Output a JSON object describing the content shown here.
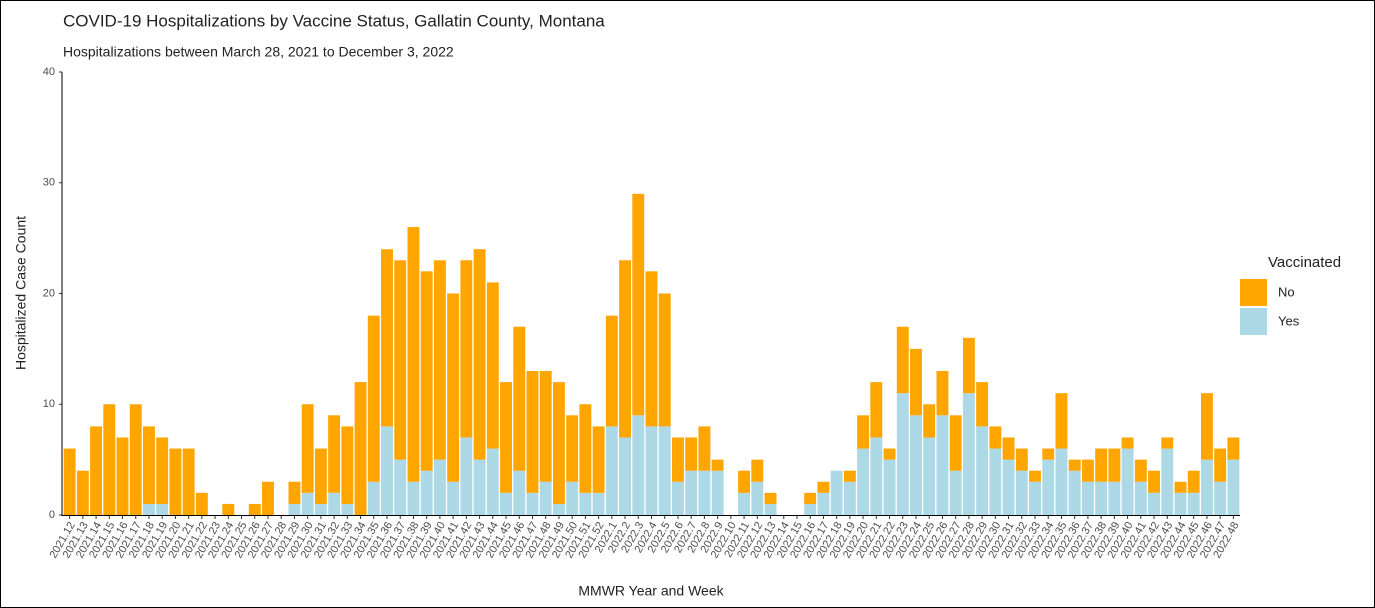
{
  "chart_data": {
    "type": "stacked_bar",
    "title": "COVID-19 Hospitalizations by Vaccine Status, Gallatin County, Montana",
    "subtitle": "Hospitalizations between March 28, 2021 to December 3, 2022",
    "x_label": "MMWR Year and Week",
    "y_label": "Hospitalized Case Count",
    "legend_title": "Vaccinated",
    "legend_position": "right",
    "categories": [
      "2021.12",
      "2021.13",
      "2021.14",
      "2021.15",
      "2021.16",
      "2021.17",
      "2021.18",
      "2021.19",
      "2021.20",
      "2021.21",
      "2021.22",
      "2021.23",
      "2021.24",
      "2021.25",
      "2021.26",
      "2021.27",
      "2021.28",
      "2021.29",
      "2021.30",
      "2021.31",
      "2021.32",
      "2021.33",
      "2021.34",
      "2021.35",
      "2021.36",
      "2021.37",
      "2021.38",
      "2021.39",
      "2021.40",
      "2021.41",
      "2021.42",
      "2021.43",
      "2021.44",
      "2021.45",
      "2021.46",
      "2021.47",
      "2021.48",
      "2021.49",
      "2021.50",
      "2021.51",
      "2021.52",
      "2022.1",
      "2022.2",
      "2022.3",
      "2022.4",
      "2022.5",
      "2022.6",
      "2022.7",
      "2022.8",
      "2022.9",
      "2022.10",
      "2022.11",
      "2022.12",
      "2022.13",
      "2022.14",
      "2022.15",
      "2022.16",
      "2022.17",
      "2022.18",
      "2022.19",
      "2022.20",
      "2022.21",
      "2022.22",
      "2022.23",
      "2022.24",
      "2022.25",
      "2022.26",
      "2022.27",
      "2022.28",
      "2022.29",
      "2022.30",
      "2022.31",
      "2022.32",
      "2022.33",
      "2022.34",
      "2022.35",
      "2022.36",
      "2022.37",
      "2022.38",
      "2022.39",
      "2022.40",
      "2022.41",
      "2022.42",
      "2022.43",
      "2022.44",
      "2022.45",
      "2022.46",
      "2022.47",
      "2022.48"
    ],
    "series": [
      {
        "name": "No",
        "color": "#ffa500",
        "values": [
          6,
          4,
          8,
          10,
          7,
          10,
          7,
          6,
          6,
          6,
          2,
          0,
          1,
          0,
          1,
          3,
          0,
          2,
          8,
          5,
          7,
          7,
          12,
          15,
          16,
          18,
          23,
          18,
          18,
          17,
          16,
          19,
          15,
          10,
          13,
          11,
          10,
          11,
          6,
          8,
          6,
          10,
          16,
          20,
          14,
          12,
          4,
          3,
          4,
          1,
          0,
          2,
          2,
          1,
          0,
          0,
          1,
          1,
          0,
          1,
          3,
          5,
          1,
          6,
          6,
          3,
          4,
          5,
          5,
          4,
          2,
          2,
          2,
          1,
          1,
          5,
          1,
          2,
          3,
          3,
          1,
          2,
          2,
          1,
          1,
          2,
          6,
          3,
          2
        ]
      },
      {
        "name": "Yes",
        "color": "#add8e6",
        "values": [
          0,
          0,
          0,
          0,
          0,
          0,
          1,
          1,
          0,
          0,
          0,
          0,
          0,
          0,
          0,
          0,
          0,
          1,
          2,
          1,
          2,
          1,
          0,
          3,
          8,
          5,
          3,
          4,
          5,
          3,
          7,
          5,
          6,
          2,
          4,
          2,
          3,
          1,
          3,
          2,
          2,
          8,
          7,
          9,
          8,
          8,
          3,
          4,
          4,
          4,
          0,
          2,
          3,
          1,
          0,
          0,
          1,
          2,
          4,
          3,
          6,
          7,
          5,
          11,
          9,
          7,
          9,
          4,
          11,
          8,
          6,
          5,
          4,
          3,
          5,
          6,
          4,
          3,
          3,
          3,
          6,
          3,
          2,
          6,
          2,
          2,
          5,
          3,
          5
        ]
      }
    ],
    "ylim": [
      0,
      40
    ],
    "yticks": [
      0,
      10,
      20,
      30,
      40
    ],
    "grid": false
  }
}
